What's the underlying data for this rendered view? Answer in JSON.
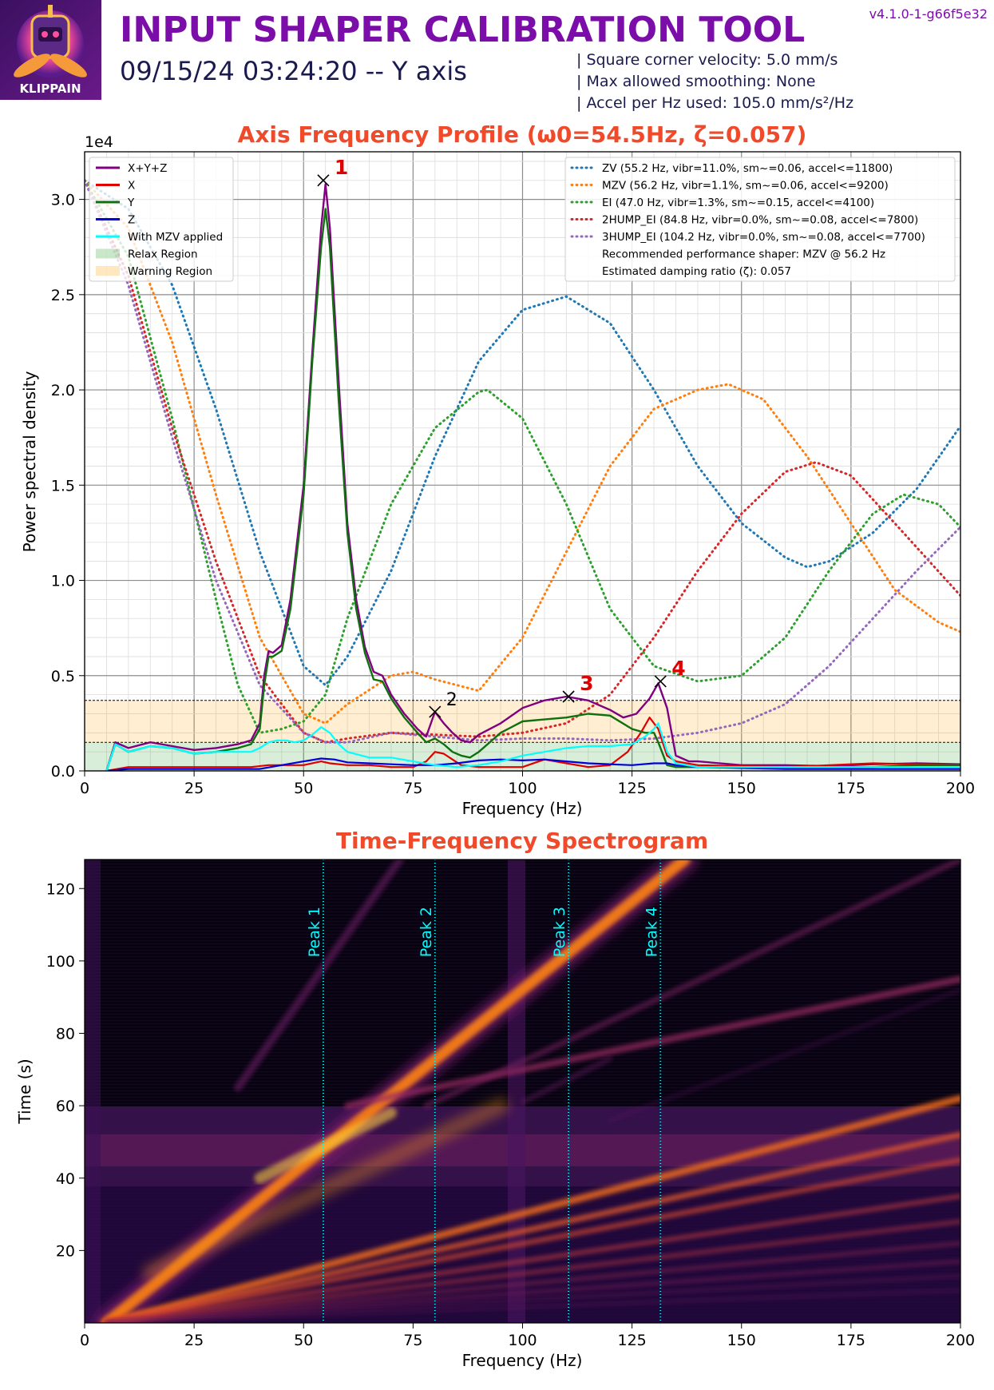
{
  "header": {
    "logo_text": "KLIPPAIN",
    "title": "INPUT SHAPER CALIBRATION TOOL",
    "subtitle": "09/15/24 03:24:20 -- Y axis",
    "version": "v4.1.0-1-g66f5e32",
    "params": [
      "| Square corner velocity: 5.0 mm/s",
      "| Max allowed smoothing: None",
      "| Accel per Hz used: 105.0 mm/s²/Hz"
    ]
  },
  "colors": {
    "title": "#7b0ea8",
    "plot_title": "#f04a2a"
  },
  "chart_data": [
    {
      "type": "line",
      "title": "Axis Frequency Profile (ω0=54.5Hz, ζ=0.057)",
      "xlabel": "Frequency (Hz)",
      "ylabel": "Power spectral density",
      "y_scale_label": "1e4",
      "xlim": [
        0,
        200
      ],
      "ylim": [
        0,
        3.25
      ],
      "xticks": [
        0,
        25,
        50,
        75,
        100,
        125,
        150,
        175,
        200
      ],
      "xtick_labels": [
        "0",
        "25",
        "50",
        "75",
        "100",
        "125",
        "150",
        "175",
        "200"
      ],
      "yticks": [
        0.0,
        0.5,
        1.0,
        1.5,
        2.0,
        2.5,
        3.0
      ],
      "ytick_labels": [
        "0.0",
        "0.5",
        "1.0",
        "1.5",
        "2.0",
        "2.5",
        "3.0"
      ],
      "grid": true,
      "regions": [
        {
          "name": "Relax Region",
          "y0": 0,
          "y1": 0.15,
          "color": "#2ca02c"
        },
        {
          "name": "Warning Region",
          "y0": 0.15,
          "y1": 0.37,
          "color": "#ff9f00"
        }
      ],
      "series": [
        {
          "name": "X+Y+Z",
          "color": "#800080",
          "width": 2.4,
          "x": [
            5,
            7,
            10,
            15,
            20,
            25,
            30,
            35,
            38,
            40,
            41,
            42,
            43,
            45,
            47,
            50,
            52,
            54,
            55,
            56,
            58,
            60,
            62,
            64,
            66,
            68,
            70,
            73,
            76,
            78,
            80,
            82,
            84,
            86,
            88,
            90,
            95,
            100,
            105,
            110,
            115,
            120,
            123,
            126,
            129,
            131,
            133,
            135,
            138,
            140,
            150,
            160,
            170,
            180,
            190,
            200
          ],
          "y": [
            0.0,
            0.15,
            0.12,
            0.15,
            0.13,
            0.11,
            0.12,
            0.14,
            0.16,
            0.25,
            0.5,
            0.63,
            0.62,
            0.66,
            0.9,
            1.5,
            2.2,
            2.85,
            3.08,
            2.85,
            2.05,
            1.3,
            0.9,
            0.65,
            0.52,
            0.5,
            0.4,
            0.3,
            0.22,
            0.18,
            0.31,
            0.25,
            0.2,
            0.16,
            0.15,
            0.19,
            0.25,
            0.33,
            0.37,
            0.39,
            0.37,
            0.32,
            0.28,
            0.3,
            0.38,
            0.46,
            0.33,
            0.08,
            0.05,
            0.05,
            0.03,
            0.03,
            0.025,
            0.035,
            0.04,
            0.035
          ]
        },
        {
          "name": "X",
          "color": "#e00000",
          "width": 2.2,
          "x": [
            5,
            10,
            20,
            30,
            38,
            42,
            46,
            50,
            54,
            56,
            60,
            65,
            70,
            75,
            78,
            80,
            82,
            84,
            86,
            90,
            95,
            100,
            105,
            110,
            115,
            120,
            124,
            127,
            129,
            131,
            133,
            135,
            140,
            160,
            180,
            200
          ],
          "y": [
            0.0,
            0.02,
            0.02,
            0.02,
            0.02,
            0.03,
            0.03,
            0.03,
            0.05,
            0.04,
            0.03,
            0.03,
            0.02,
            0.02,
            0.05,
            0.1,
            0.09,
            0.06,
            0.03,
            0.02,
            0.02,
            0.02,
            0.06,
            0.04,
            0.02,
            0.03,
            0.1,
            0.2,
            0.28,
            0.22,
            0.08,
            0.05,
            0.03,
            0.02,
            0.04,
            0.03
          ]
        },
        {
          "name": "Y",
          "color": "#107010",
          "width": 2.4,
          "x": [
            5,
            7,
            10,
            15,
            20,
            25,
            30,
            35,
            38,
            40,
            41,
            42,
            43,
            45,
            47,
            50,
            52,
            54,
            55,
            56,
            58,
            60,
            62,
            64,
            66,
            68,
            70,
            73,
            76,
            78,
            80,
            82,
            84,
            86,
            88,
            90,
            95,
            100,
            105,
            110,
            115,
            120,
            125,
            128,
            130,
            131,
            133,
            135,
            138,
            140,
            150,
            160,
            170,
            180,
            190,
            200
          ],
          "y": [
            0.0,
            0.14,
            0.1,
            0.13,
            0.12,
            0.09,
            0.1,
            0.12,
            0.14,
            0.22,
            0.45,
            0.6,
            0.6,
            0.63,
            0.85,
            1.45,
            2.15,
            2.75,
            2.95,
            2.75,
            1.95,
            1.25,
            0.85,
            0.62,
            0.48,
            0.47,
            0.38,
            0.28,
            0.2,
            0.15,
            0.17,
            0.14,
            0.1,
            0.08,
            0.07,
            0.1,
            0.2,
            0.26,
            0.27,
            0.28,
            0.3,
            0.29,
            0.22,
            0.2,
            0.2,
            0.15,
            0.03,
            0.02,
            0.02,
            0.02,
            0.02,
            0.02,
            0.02,
            0.02,
            0.03,
            0.03
          ]
        },
        {
          "name": "Z",
          "color": "#0000dd",
          "width": 2.2,
          "x": [
            5,
            10,
            20,
            30,
            40,
            45,
            50,
            54,
            57,
            60,
            65,
            70,
            75,
            80,
            85,
            90,
            95,
            100,
            105,
            110,
            115,
            120,
            125,
            130,
            133,
            135,
            140,
            160,
            180,
            200
          ],
          "y": [
            0.0,
            0.01,
            0.01,
            0.01,
            0.01,
            0.03,
            0.05,
            0.065,
            0.06,
            0.045,
            0.04,
            0.035,
            0.03,
            0.03,
            0.04,
            0.055,
            0.06,
            0.055,
            0.06,
            0.05,
            0.04,
            0.035,
            0.03,
            0.04,
            0.04,
            0.03,
            0.02,
            0.01,
            0.01,
            0.01
          ]
        },
        {
          "name": "With MZV applied",
          "color": "#00ffff",
          "width": 2.2,
          "x": [
            5,
            7,
            10,
            15,
            20,
            25,
            30,
            35,
            38,
            40,
            42,
            44,
            46,
            48,
            50,
            52,
            54,
            56,
            58,
            60,
            65,
            70,
            75,
            80,
            85,
            90,
            95,
            100,
            105,
            110,
            115,
            120,
            125,
            128,
            130,
            131,
            133,
            135,
            140,
            160,
            180,
            200
          ],
          "y": [
            0.0,
            0.14,
            0.1,
            0.13,
            0.12,
            0.09,
            0.1,
            0.1,
            0.1,
            0.12,
            0.15,
            0.16,
            0.16,
            0.15,
            0.16,
            0.19,
            0.23,
            0.2,
            0.14,
            0.1,
            0.07,
            0.07,
            0.05,
            0.03,
            0.02,
            0.03,
            0.05,
            0.08,
            0.1,
            0.12,
            0.13,
            0.13,
            0.14,
            0.18,
            0.22,
            0.25,
            0.1,
            0.04,
            0.02,
            0.02,
            0.02,
            0.02
          ]
        }
      ],
      "shaper_series": [
        {
          "name": "ZV (55.2 Hz, vibr=11.0%, sm~=0.06, accel<=11800)",
          "color": "#1f77b4",
          "x": [
            0,
            10,
            20,
            30,
            40,
            50,
            55,
            60,
            70,
            80,
            90,
            100,
            110,
            120,
            130,
            140,
            150,
            160,
            165,
            170,
            180,
            190,
            200
          ],
          "y": [
            3.1,
            2.95,
            2.55,
            1.9,
            1.15,
            0.55,
            0.45,
            0.6,
            1.05,
            1.65,
            2.15,
            2.42,
            2.49,
            2.35,
            2.0,
            1.6,
            1.3,
            1.12,
            1.07,
            1.1,
            1.25,
            1.48,
            1.81
          ]
        },
        {
          "name": "MZV (56.2 Hz, vibr=1.1%, sm~=0.06, accel<=9200)",
          "color": "#ff7f0e",
          "x": [
            0,
            10,
            20,
            30,
            40,
            50,
            55,
            60,
            70,
            75,
            80,
            90,
            100,
            110,
            120,
            130,
            140,
            147,
            155,
            165,
            175,
            185,
            195,
            200
          ],
          "y": [
            3.1,
            2.85,
            2.25,
            1.45,
            0.7,
            0.3,
            0.25,
            0.35,
            0.5,
            0.52,
            0.48,
            0.42,
            0.7,
            1.15,
            1.6,
            1.9,
            2.0,
            2.03,
            1.95,
            1.65,
            1.3,
            0.95,
            0.78,
            0.73
          ]
        },
        {
          "name": "EI (47.0 Hz, vibr=1.3%, sm~=0.15, accel<=4100)",
          "color": "#2ca02c",
          "x": [
            0,
            10,
            20,
            30,
            35,
            40,
            45,
            50,
            55,
            60,
            70,
            80,
            90,
            92,
            100,
            110,
            120,
            130,
            140,
            150,
            160,
            170,
            180,
            187,
            195,
            200
          ],
          "y": [
            3.1,
            2.7,
            1.85,
            0.9,
            0.45,
            0.2,
            0.22,
            0.26,
            0.4,
            0.8,
            1.4,
            1.8,
            1.99,
            2.0,
            1.85,
            1.4,
            0.85,
            0.55,
            0.47,
            0.5,
            0.7,
            1.05,
            1.35,
            1.45,
            1.4,
            1.28
          ]
        },
        {
          "name": "2HUMP_EI (84.8 Hz, vibr=0.0%, sm~=0.08, accel<=7800)",
          "color": "#d62728",
          "x": [
            0,
            10,
            20,
            30,
            40,
            50,
            55,
            60,
            70,
            80,
            90,
            100,
            110,
            120,
            130,
            140,
            150,
            160,
            167,
            175,
            185,
            200
          ],
          "y": [
            3.1,
            2.6,
            1.8,
            1.1,
            0.5,
            0.2,
            0.15,
            0.17,
            0.2,
            0.19,
            0.18,
            0.2,
            0.25,
            0.4,
            0.7,
            1.05,
            1.35,
            1.57,
            1.62,
            1.55,
            1.3,
            0.92
          ]
        },
        {
          "name": "3HUMP_EI (104.2 Hz, vibr=0.0%, sm~=0.08, accel<=7700)",
          "color": "#9467bd",
          "x": [
            0,
            10,
            20,
            30,
            40,
            50,
            55,
            60,
            70,
            80,
            90,
            100,
            110,
            120,
            130,
            140,
            150,
            160,
            170,
            180,
            190,
            200
          ],
          "y": [
            3.1,
            2.55,
            1.75,
            1.0,
            0.45,
            0.2,
            0.15,
            0.15,
            0.2,
            0.18,
            0.16,
            0.17,
            0.17,
            0.16,
            0.17,
            0.2,
            0.25,
            0.35,
            0.55,
            0.8,
            1.05,
            1.28
          ]
        }
      ],
      "legend_extra": [
        "Recommended performance shaper: MZV @ 56.2 Hz",
        "Estimated damping ratio (ζ): 0.057"
      ],
      "peaks": [
        {
          "label": "1",
          "x": 54.5,
          "y": 3.1,
          "color": "#e00000"
        },
        {
          "label": "2",
          "x": 80.0,
          "y": 0.31,
          "color": "#000000"
        },
        {
          "label": "3",
          "x": 110.5,
          "y": 0.39,
          "color": "#e00000"
        },
        {
          "label": "4",
          "x": 131.5,
          "y": 0.47,
          "color": "#e00000"
        }
      ],
      "legend_position": "top-left and top-right"
    },
    {
      "type": "heatmap",
      "title": "Time-Frequency Spectrogram",
      "xlabel": "Frequency (Hz)",
      "ylabel": "Time (s)",
      "xlim": [
        0,
        200
      ],
      "ylim": [
        0,
        128
      ],
      "xticks": [
        0,
        25,
        50,
        75,
        100,
        125,
        150,
        175,
        200
      ],
      "xtick_labels": [
        "0",
        "25",
        "50",
        "75",
        "100",
        "125",
        "150",
        "175",
        "200"
      ],
      "yticks": [
        20,
        40,
        60,
        80,
        100,
        120
      ],
      "ytick_labels": [
        "20",
        "40",
        "60",
        "80",
        "100",
        "120"
      ],
      "colormap": "inferno",
      "peak_lines": [
        {
          "label": "Peak 1",
          "x": 54.5
        },
        {
          "label": "Peak 2",
          "x": 80.0
        },
        {
          "label": "Peak 3",
          "x": 110.5
        },
        {
          "label": "Peak 4",
          "x": 131.5
        }
      ]
    }
  ]
}
